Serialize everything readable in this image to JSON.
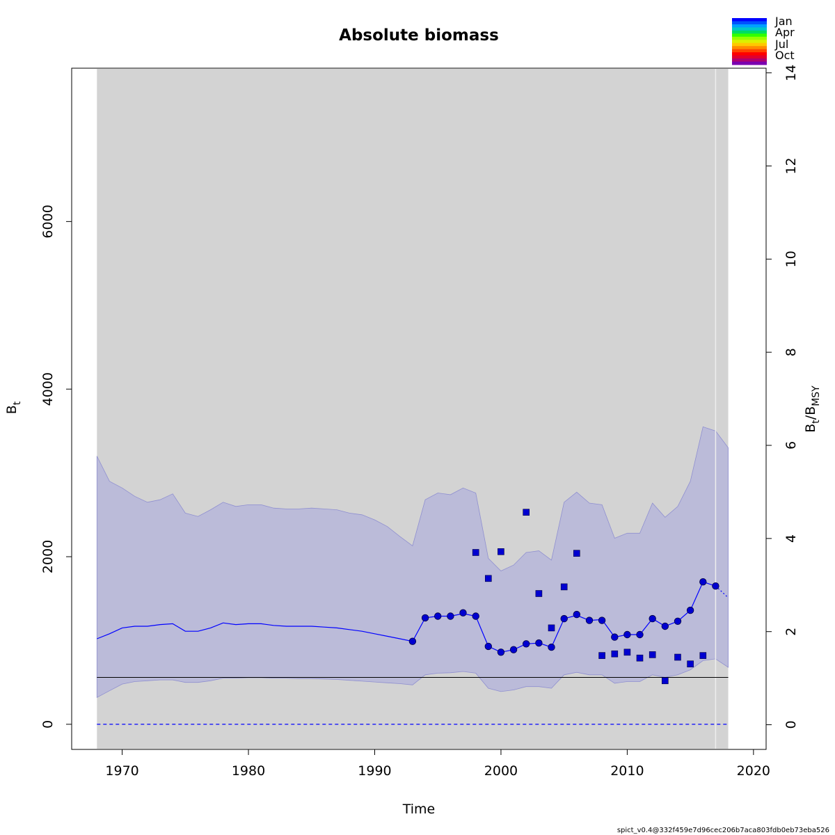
{
  "chart_data": {
    "type": "line",
    "title": "Absolute biomass",
    "xlabel": "Time",
    "ylabel": {
      "main": "B",
      "sub": "t"
    },
    "y2label": {
      "part1": "B",
      "sub1": "t",
      "part2": "/B",
      "sub2": "MSY"
    },
    "xlim": [
      1966,
      2021
    ],
    "ylim": [
      -300,
      7830
    ],
    "y2lim": [
      -0.53,
      14.1
    ],
    "xticks": [
      1970,
      1980,
      1990,
      2000,
      2010,
      2020
    ],
    "yticks": [
      0,
      2000,
      4000,
      6000
    ],
    "y2ticks": [
      0,
      2,
      4,
      6,
      8,
      10,
      12,
      14
    ],
    "grey_region": [
      1968,
      2018
    ],
    "forecast_start": 2017,
    "bmsy": 560,
    "zero_line": 0,
    "colors": {
      "background_region": "#d3d3d3",
      "ci_band": "#bbbbd9",
      "ci_edge": "#8f8fd0",
      "estimate": "#0000ff",
      "points": "#0000d0",
      "bmsy_line": "#000000"
    },
    "estimate_line": {
      "x": [
        1968,
        1969,
        1970,
        1971,
        1972,
        1973,
        1974,
        1975,
        1976,
        1977,
        1978,
        1979,
        1980,
        1981,
        1982,
        1983,
        1984,
        1985,
        1986,
        1987,
        1988,
        1989,
        1990,
        1991,
        1992,
        1993,
        1994,
        1995,
        1996,
        1997,
        1998,
        1999,
        2000,
        2001,
        2002,
        2003,
        2004,
        2005,
        2006,
        2007,
        2008,
        2009,
        2010,
        2011,
        2012,
        2013,
        2014,
        2015,
        2016,
        2017
      ],
      "y": [
        1020,
        1080,
        1150,
        1170,
        1170,
        1190,
        1200,
        1110,
        1110,
        1150,
        1210,
        1190,
        1200,
        1200,
        1180,
        1170,
        1170,
        1170,
        1160,
        1150,
        1130,
        1110,
        1080,
        1050,
        1020,
        990,
        1270,
        1290,
        1290,
        1320,
        1290,
        930,
        860,
        890,
        960,
        970,
        920,
        1260,
        1300,
        1240,
        1250,
        1040,
        1070,
        1070,
        1260,
        1170,
        1230,
        1360,
        1700,
        1650
      ]
    },
    "forecast_line": {
      "x": [
        2017,
        2018
      ],
      "y": [
        1650,
        1510
      ]
    },
    "ci_upper": {
      "x": [
        1968,
        1969,
        1970,
        1971,
        1972,
        1973,
        1974,
        1975,
        1976,
        1977,
        1978,
        1979,
        1980,
        1981,
        1982,
        1983,
        1984,
        1985,
        1986,
        1987,
        1988,
        1989,
        1990,
        1991,
        1992,
        1993,
        1994,
        1995,
        1996,
        1997,
        1998,
        1999,
        2000,
        2001,
        2002,
        2003,
        2004,
        2005,
        2006,
        2007,
        2008,
        2009,
        2010,
        2011,
        2012,
        2013,
        2014,
        2015,
        2016,
        2017,
        2018
      ],
      "y": [
        3200,
        2900,
        2820,
        2720,
        2650,
        2680,
        2750,
        2520,
        2480,
        2560,
        2650,
        2600,
        2620,
        2620,
        2580,
        2570,
        2570,
        2580,
        2570,
        2560,
        2520,
        2500,
        2440,
        2360,
        2240,
        2130,
        2680,
        2760,
        2740,
        2820,
        2760,
        1980,
        1830,
        1900,
        2050,
        2070,
        1960,
        2650,
        2770,
        2640,
        2620,
        2220,
        2280,
        2280,
        2640,
        2470,
        2600,
        2900,
        3550,
        3500,
        3300
      ]
    },
    "ci_lower": {
      "x": [
        1968,
        1969,
        1970,
        1971,
        1972,
        1973,
        1974,
        1975,
        1976,
        1977,
        1978,
        1979,
        1980,
        1981,
        1982,
        1983,
        1984,
        1985,
        1986,
        1987,
        1988,
        1989,
        1990,
        1991,
        1992,
        1993,
        1994,
        1995,
        1996,
        1997,
        1998,
        1999,
        2000,
        2001,
        2002,
        2003,
        2004,
        2005,
        2006,
        2007,
        2008,
        2009,
        2010,
        2011,
        2012,
        2013,
        2014,
        2015,
        2016,
        2017,
        2018
      ],
      "y": [
        320,
        400,
        480,
        510,
        520,
        530,
        530,
        500,
        500,
        520,
        550,
        550,
        555,
        555,
        550,
        550,
        545,
        545,
        540,
        535,
        525,
        515,
        505,
        495,
        485,
        470,
        590,
        610,
        615,
        630,
        610,
        430,
        390,
        410,
        450,
        450,
        430,
        590,
        620,
        590,
        590,
        490,
        510,
        510,
        590,
        560,
        590,
        650,
        760,
        780,
        680
      ]
    },
    "observations_circle": {
      "x": [
        1993,
        1994,
        1995,
        1996,
        1997,
        1998,
        1999,
        2000,
        2001,
        2002,
        2003,
        2004,
        2005,
        2006,
        2007,
        2008,
        2009,
        2010,
        2011,
        2012,
        2013,
        2014,
        2015,
        2016,
        2017
      ],
      "y": [
        990,
        1270,
        1290,
        1290,
        1330,
        1290,
        930,
        860,
        890,
        960,
        970,
        920,
        1260,
        1310,
        1240,
        1240,
        1040,
        1070,
        1070,
        1260,
        1170,
        1230,
        1360,
        1700,
        1650
      ]
    },
    "observations_square": {
      "x": [
        1998,
        1999,
        2000,
        2002,
        2003,
        2004,
        2005,
        2006,
        2008,
        2009,
        2010,
        2011,
        2012,
        2013,
        2014,
        2015,
        2016
      ],
      "y": [
        2050,
        1740,
        2060,
        2530,
        1560,
        1150,
        1640,
        2040,
        820,
        840,
        860,
        790,
        830,
        520,
        800,
        720,
        820
      ]
    },
    "legend": {
      "position": "top-right",
      "labels": [
        "Jan",
        "Apr",
        "Jul",
        "Oct"
      ],
      "gradient": [
        "#0000ff",
        "#0050ff",
        "#00a0ff",
        "#00c8c8",
        "#00dc64",
        "#32ff00",
        "#96ff00",
        "#dcf000",
        "#ffc800",
        "#ff8c00",
        "#ff4600",
        "#ff0000",
        "#e00030",
        "#b00070",
        "#7a00b0"
      ]
    }
  },
  "footer": "spict_v0.4@332f459e7d96cec206b7aca803fdb0eb73eba526"
}
